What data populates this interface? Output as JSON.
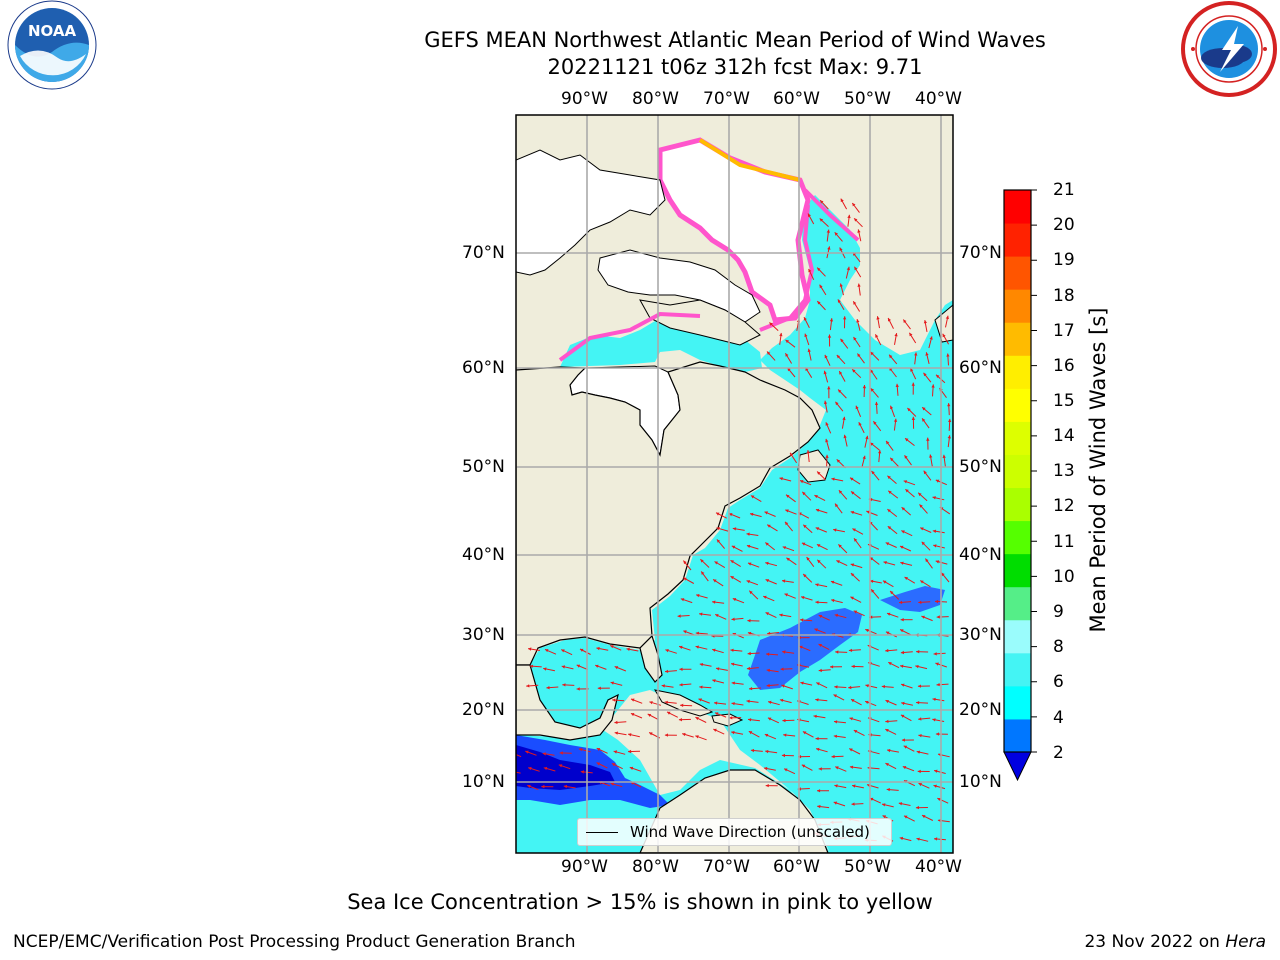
{
  "title": {
    "line1": "GEFS MEAN Northwest Atlantic Mean Period of Wind Waves",
    "line2": "20221121 t06z 312h fcst   Max: 9.71"
  },
  "logos": {
    "noaa": {
      "icon": "noaa-logo-icon",
      "text": "NOAA"
    },
    "nws": {
      "icon": "nws-logo-icon"
    }
  },
  "map": {
    "lon_labels": [
      "90°W",
      "80°W",
      "70°W",
      "60°W",
      "50°W",
      "40°W"
    ],
    "lat_labels": [
      "70°N",
      "60°N",
      "50°N",
      "40°N",
      "30°N",
      "20°N",
      "10°N"
    ],
    "ocean_color": "#44f4f4",
    "land_color": "#efeddb",
    "ice_colors": [
      "#ff55cc",
      "#ff9966",
      "#ffdd33"
    ],
    "arrow_color": "#e41a1c"
  },
  "legend": {
    "label": "Wind Wave Direction (unscaled)"
  },
  "colorbar": {
    "label": "Mean Period of Wind Waves [s]",
    "ticks": [
      "21",
      "20",
      "19",
      "18",
      "17",
      "16",
      "15",
      "14",
      "13",
      "12",
      "11",
      "10",
      "9",
      "8",
      "6",
      "4",
      "2"
    ],
    "colors": [
      "#0000e0",
      "#0077ff",
      "#00ffff",
      "#44f4f4",
      "#9afcfc",
      "#55ee88",
      "#00dd00",
      "#55ff00",
      "#aaff00",
      "#ccff00",
      "#ddff00",
      "#ffff00",
      "#ffee00",
      "#ffbb00",
      "#ff8800",
      "#ff5500",
      "#ff2200",
      "#ff0000"
    ]
  },
  "note": "Sea Ice Concentration > 15% is shown in pink to yellow",
  "footer": {
    "left": "NCEP/EMC/Verification Post Processing Product Generation Branch",
    "right_prefix": "23 Nov 2022 on ",
    "right_host": "Hera"
  }
}
